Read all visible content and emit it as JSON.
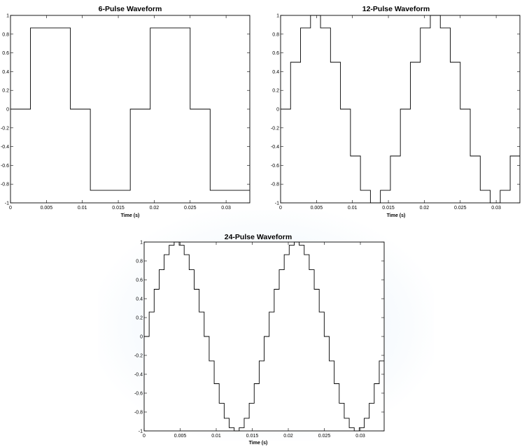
{
  "chart_data": [
    {
      "type": "line",
      "title": "6-Pulse Waveform",
      "xlabel": "Time (s)",
      "ylabel": "",
      "xlim": [
        0,
        0.0333
      ],
      "ylim": [
        -1,
        1
      ],
      "xticks": [
        0,
        0.005,
        0.01,
        0.015,
        0.02,
        0.025,
        0.03
      ],
      "xtick_labels": [
        "0",
        "0.005",
        "0.01",
        "0.015",
        "0.02",
        "0.025",
        "0.03"
      ],
      "yticks": [
        -1,
        -0.8,
        -0.6,
        -0.4,
        -0.2,
        0,
        0.2,
        0.4,
        0.6,
        0.8,
        1
      ],
      "ytick_labels": [
        "-1",
        "-0.8",
        "-0.6",
        "-0.4",
        "-0.2",
        "0",
        "0.2",
        "0.4",
        "0.6",
        "0.8",
        "1"
      ],
      "step_duration": 0.002778,
      "levels": [
        0,
        0.866,
        0.866,
        0,
        -0.866,
        -0.866,
        0,
        0.866,
        0.866,
        0,
        -0.866,
        -0.866
      ]
    },
    {
      "type": "line",
      "title": "12-Pulse Waveform",
      "xlabel": "Time (s)",
      "ylabel": "",
      "xlim": [
        0,
        0.0333
      ],
      "ylim": [
        -1,
        1
      ],
      "xticks": [
        0,
        0.005,
        0.01,
        0.015,
        0.02,
        0.025,
        0.03
      ],
      "xtick_labels": [
        "0",
        "0.005",
        "0.01",
        "0.015",
        "0.02",
        "0.025",
        "0.03"
      ],
      "yticks": [
        -1,
        -0.8,
        -0.6,
        -0.4,
        -0.2,
        0,
        0.2,
        0.4,
        0.6,
        0.8,
        1
      ],
      "ytick_labels": [
        "-1",
        "-0.8",
        "-0.6",
        "-0.4",
        "-0.2",
        "0",
        "0.2",
        "0.4",
        "0.6",
        "0.8",
        "1"
      ],
      "step_duration": 0.001389,
      "levels": [
        0,
        0.5,
        0.866,
        1,
        0.866,
        0.5,
        0,
        -0.5,
        -0.866,
        -1,
        -0.866,
        -0.5,
        0,
        0.5,
        0.866,
        1,
        0.866,
        0.5,
        0,
        -0.5,
        -0.866,
        -1,
        -0.866,
        -0.5
      ]
    },
    {
      "type": "line",
      "title": "24-Pulse Waveform",
      "xlabel": "Time (s)",
      "ylabel": "",
      "xlim": [
        0,
        0.0333
      ],
      "ylim": [
        -1,
        1
      ],
      "xticks": [
        0,
        0.005,
        0.01,
        0.015,
        0.02,
        0.025,
        0.03
      ],
      "xtick_labels": [
        "0",
        "0.005",
        "0.01",
        "0.015",
        "0.02",
        "0.025",
        "0.03"
      ],
      "yticks": [
        -1,
        -0.8,
        -0.6,
        -0.4,
        -0.2,
        0,
        0.2,
        0.4,
        0.6,
        0.8,
        1
      ],
      "ytick_labels": [
        "-1",
        "-0.8",
        "-0.6",
        "-0.4",
        "-0.2",
        "0",
        "0.2",
        "0.4",
        "0.6",
        "0.8",
        "1"
      ],
      "step_duration": 0.000694,
      "levels": [
        0,
        0.259,
        0.5,
        0.707,
        0.866,
        0.966,
        1,
        0.966,
        0.866,
        0.707,
        0.5,
        0.259,
        0,
        -0.259,
        -0.5,
        -0.707,
        -0.866,
        -0.966,
        -1,
        -0.966,
        -0.866,
        -0.707,
        -0.5,
        -0.259,
        0,
        0.259,
        0.5,
        0.707,
        0.866,
        0.966,
        1,
        0.966,
        0.866,
        0.707,
        0.5,
        0.259,
        0,
        -0.259,
        -0.5,
        -0.707,
        -0.866,
        -0.966,
        -1,
        -0.966,
        -0.866,
        -0.707,
        -0.5,
        -0.259
      ]
    }
  ]
}
